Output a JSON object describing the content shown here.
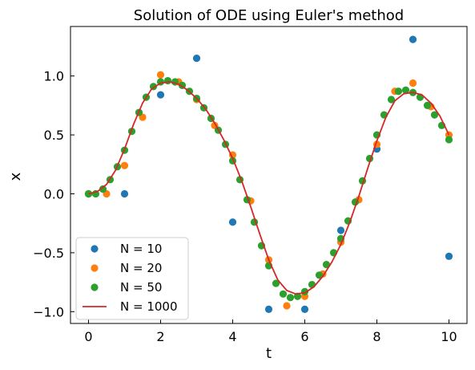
{
  "chart_data": {
    "type": "scatter",
    "title": "Solution of ODE using Euler's method",
    "xlabel": "t",
    "ylabel": "x",
    "xlim": [
      -0.5,
      10.5
    ],
    "ylim": [
      -1.1,
      1.42
    ],
    "x_ticks": [
      0,
      2,
      4,
      6,
      8,
      10
    ],
    "x_tick_labels": [
      "0",
      "2",
      "4",
      "6",
      "8",
      "10"
    ],
    "y_ticks": [
      -1.0,
      -0.5,
      0.0,
      0.5,
      1.0
    ],
    "y_tick_labels": [
      "−1.0",
      "−0.5",
      "0.0",
      "0.5",
      "1.0"
    ],
    "grid": false,
    "legend_position": "lower-left",
    "series": [
      {
        "name": "N = 10",
        "kind": "scatter",
        "color": "#1f77b4",
        "x": [
          0,
          1,
          2,
          3,
          4,
          5,
          6,
          7,
          8,
          9,
          10
        ],
        "y": [
          0.0,
          0.0,
          0.84,
          1.15,
          -0.24,
          -0.98,
          -0.98,
          -0.31,
          0.38,
          1.31,
          -0.53
        ]
      },
      {
        "name": "N = 20",
        "kind": "scatter",
        "color": "#ff7f0e",
        "x": [
          0,
          0.5,
          1,
          1.5,
          2,
          2.5,
          3,
          3.5,
          4,
          4.5,
          5,
          5.5,
          6,
          6.5,
          7,
          7.5,
          8,
          8.5,
          9,
          9.5,
          10
        ],
        "y": [
          0.0,
          0.0,
          0.24,
          0.65,
          1.01,
          0.95,
          0.8,
          0.58,
          0.33,
          -0.06,
          -0.56,
          -0.95,
          -0.87,
          -0.68,
          -0.41,
          -0.05,
          0.42,
          0.87,
          0.94,
          0.74,
          0.5
        ]
      },
      {
        "name": "N = 50",
        "kind": "scatter",
        "color": "#2ca02c",
        "x": [
          0,
          0.2,
          0.4,
          0.6,
          0.8,
          1.0,
          1.2,
          1.4,
          1.6,
          1.8,
          2.0,
          2.2,
          2.4,
          2.6,
          2.8,
          3.0,
          3.2,
          3.4,
          3.6,
          3.8,
          4.0,
          4.2,
          4.4,
          4.6,
          4.8,
          5.0,
          5.2,
          5.4,
          5.6,
          5.8,
          6.0,
          6.2,
          6.4,
          6.6,
          6.8,
          7.0,
          7.2,
          7.4,
          7.6,
          7.8,
          8.0,
          8.2,
          8.4,
          8.6,
          8.8,
          9.0,
          9.2,
          9.4,
          9.6,
          9.8,
          10.0
        ],
        "y": [
          0.0,
          0.0,
          0.04,
          0.12,
          0.23,
          0.37,
          0.53,
          0.69,
          0.82,
          0.91,
          0.95,
          0.96,
          0.95,
          0.92,
          0.87,
          0.81,
          0.73,
          0.64,
          0.54,
          0.42,
          0.28,
          0.12,
          -0.05,
          -0.24,
          -0.44,
          -0.61,
          -0.76,
          -0.85,
          -0.88,
          -0.87,
          -0.83,
          -0.77,
          -0.69,
          -0.6,
          -0.5,
          -0.38,
          -0.23,
          -0.07,
          0.11,
          0.3,
          0.5,
          0.67,
          0.8,
          0.87,
          0.88,
          0.86,
          0.82,
          0.75,
          0.67,
          0.58,
          0.46
        ]
      },
      {
        "name": "N = 1000",
        "kind": "line",
        "color": "#d62728",
        "x": [
          0,
          0.25,
          0.5,
          0.75,
          1.0,
          1.25,
          1.5,
          1.75,
          2.0,
          2.25,
          2.5,
          2.75,
          3.0,
          3.25,
          3.5,
          3.75,
          4.0,
          4.25,
          4.5,
          4.75,
          5.0,
          5.25,
          5.5,
          5.75,
          6.0,
          6.25,
          6.5,
          6.75,
          7.0,
          7.25,
          7.5,
          7.75,
          8.0,
          8.25,
          8.5,
          8.75,
          9.0,
          9.25,
          9.5,
          9.75,
          10.0
        ],
        "y": [
          0.0,
          0.02,
          0.08,
          0.2,
          0.38,
          0.59,
          0.77,
          0.89,
          0.94,
          0.95,
          0.93,
          0.88,
          0.81,
          0.72,
          0.6,
          0.46,
          0.3,
          0.11,
          -0.11,
          -0.34,
          -0.56,
          -0.73,
          -0.82,
          -0.85,
          -0.84,
          -0.79,
          -0.7,
          -0.58,
          -0.43,
          -0.24,
          -0.02,
          0.22,
          0.45,
          0.65,
          0.79,
          0.85,
          0.86,
          0.84,
          0.77,
          0.66,
          0.5
        ]
      }
    ]
  }
}
